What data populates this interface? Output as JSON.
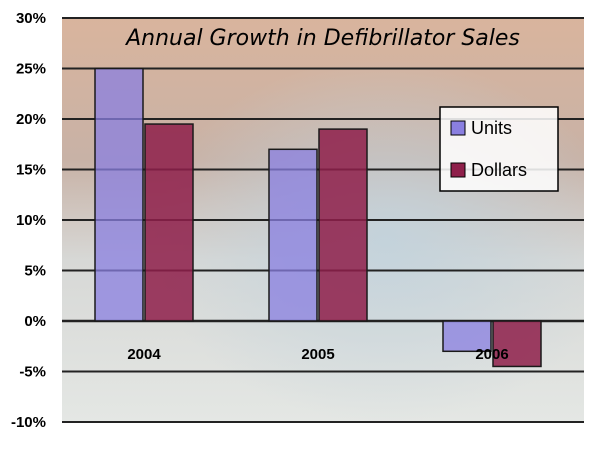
{
  "chart_data": {
    "type": "bar",
    "title": "Annual Growth in Defibrillator Sales",
    "categories": [
      "2004",
      "2005",
      "2006"
    ],
    "series": [
      {
        "name": "Units",
        "values": [
          25,
          17,
          -3
        ]
      },
      {
        "name": "Dollars",
        "values": [
          19.5,
          19,
          -4.5
        ]
      }
    ],
    "y_ticks": [
      "30%",
      "25%",
      "20%",
      "15%",
      "10%",
      "5%",
      "0%",
      "-5%",
      "-10%"
    ],
    "ylim": [
      -10,
      30
    ],
    "grid": true,
    "legend_position": "right",
    "colors": {
      "units": "#8a7fe0",
      "dollars": "#8e1f4a",
      "background_top": "#c9a58e",
      "background_bottom": "#d8e2e6",
      "grid": "#222222"
    }
  }
}
